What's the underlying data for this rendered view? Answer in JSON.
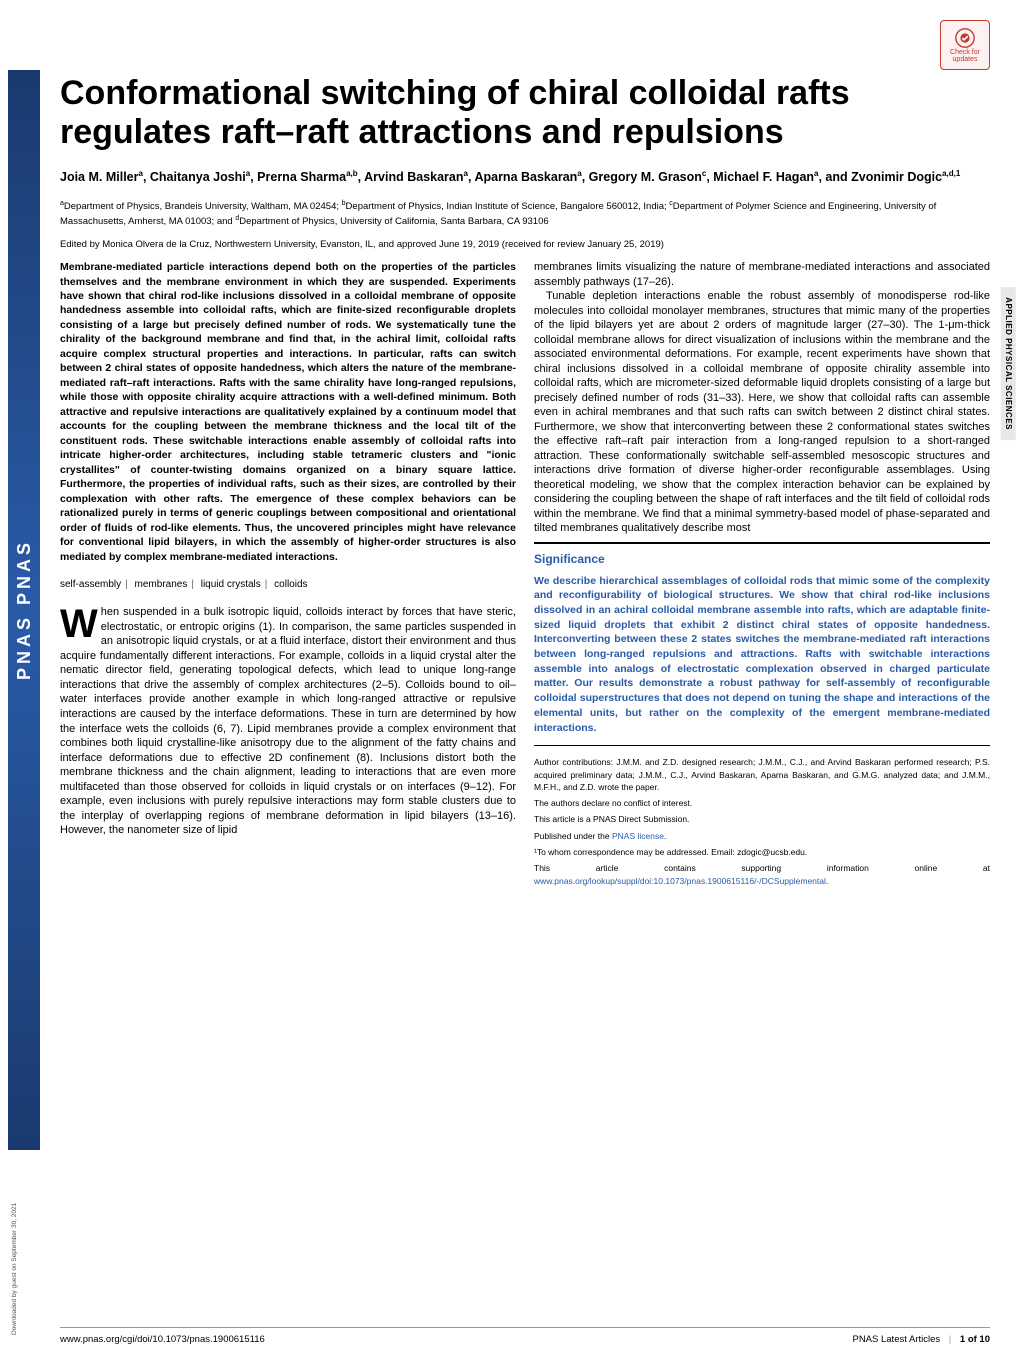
{
  "journal_ribbon": "PNAS PNAS",
  "download_note": "Downloaded by guest on September 30, 2021",
  "badge": {
    "line1": "Check for",
    "line2": "updates"
  },
  "side_label": "APPLIED PHYSICAL SCIENCES",
  "title": "Conformational switching of chiral colloidal rafts regulates raft–raft attractions and repulsions",
  "authors_html": "Joia M. Miller<sup>a</sup>, Chaitanya Joshi<sup>a</sup>, Prerna Sharma<sup>a,b</sup>, Arvind Baskaran<sup>a</sup>, Aparna Baskaran<sup>a</sup>, Gregory M. Grason<sup>c</sup>, Michael F. Hagan<sup>a</sup>, and Zvonimir Dogic<sup>a,d,1</sup>",
  "affiliations_html": "<sup>a</sup>Department of Physics, Brandeis University, Waltham, MA 02454; <sup>b</sup>Department of Physics, Indian Institute of Science, Bangalore 560012, India; <sup>c</sup>Department of Polymer Science and Engineering, University of Massachusetts, Amherst, MA 01003; and <sup>d</sup>Department of Physics, University of California, Santa Barbara, CA 93106",
  "edited": "Edited by Monica Olvera de la Cruz, Northwestern University, Evanston, IL, and approved June 19, 2019 (received for review January 25, 2019)",
  "abstract": "Membrane-mediated particle interactions depend both on the properties of the particles themselves and the membrane environment in which they are suspended. Experiments have shown that chiral rod-like inclusions dissolved in a colloidal membrane of opposite handedness assemble into colloidal rafts, which are finite-sized reconfigurable droplets consisting of a large but precisely defined number of rods. We systematically tune the chirality of the background membrane and find that, in the achiral limit, colloidal rafts acquire complex structural properties and interactions. In particular, rafts can switch between 2 chiral states of opposite handedness, which alters the nature of the membrane-mediated raft–raft interactions. Rafts with the same chirality have long-ranged repulsions, while those with opposite chirality acquire attractions with a well-defined minimum. Both attractive and repulsive interactions are qualitatively explained by a continuum model that accounts for the coupling between the membrane thickness and the local tilt of the constituent rods. These switchable interactions enable assembly of colloidal rafts into intricate higher-order architectures, including stable tetrameric clusters and \"ionic crystallites\" of counter-twisting domains organized on a binary square lattice. Furthermore, the properties of individual rafts, such as their sizes, are controlled by their complexation with other rafts. The emergence of these complex behaviors can be rationalized purely in terms of generic couplings between compositional and orientational order of fluids of rod-like elements. Thus, the uncovered principles might have relevance for conventional lipid bilayers, in which the assembly of higher-order structures is also mediated by complex membrane-mediated interactions.",
  "keywords": [
    "self-assembly",
    "membranes",
    "liquid crystals",
    "colloids"
  ],
  "body_col1": "hen suspended in a bulk isotropic liquid, colloids interact by forces that have steric, electrostatic, or entropic origins (1). In comparison, the same particles suspended in an anisotropic liquid crystals, or at a fluid interface, distort their environment and thus acquire fundamentally different interactions. For example, colloids in a liquid crystal alter the nematic director field, generating topological defects, which lead to unique long-range interactions that drive the assembly of complex architectures (2–5). Colloids bound to oil–water interfaces provide another example in which long-ranged attractive or repulsive interactions are caused by the interface deformations. These in turn are determined by how the interface wets the colloids (6, 7). Lipid membranes provide a complex environment that combines both liquid crystalline-like anisotropy due to the alignment of the fatty chains and interface deformations due to effective 2D confinement (8). Inclusions distort both the membrane thickness and the chain alignment, leading to interactions that are even more multifaceted than those observed for colloids in liquid crystals or on interfaces (9–12). For example, even inclusions with purely repulsive interactions may form stable clusters due to the interplay of overlapping regions of membrane deformation in lipid bilayers (13–16). However, the nanometer size of lipid",
  "body_col2_top": "membranes limits visualizing the nature of membrane-mediated interactions and associated assembly pathways (17–26).",
  "body_col2_p2": "Tunable depletion interactions enable the robust assembly of monodisperse rod-like molecules into colloidal monolayer membranes, structures that mimic many of the properties of the lipid bilayers yet are about 2 orders of magnitude larger (27–30). The 1-μm-thick colloidal membrane allows for direct visualization of inclusions within the membrane and the associated environmental deformations. For example, recent experiments have shown that chiral inclusions dissolved in a colloidal membrane of opposite chirality assemble into colloidal rafts, which are micrometer-sized deformable liquid droplets consisting of a large but precisely defined number of rods (31–33). Here, we show that colloidal rafts can assemble even in achiral membranes and that such rafts can switch between 2 distinct chiral states. Furthermore, we show that interconverting between these 2 conformational states switches the effective raft–raft pair interaction from a long-ranged repulsion to a short-ranged attraction. These conformationally switchable self-assembled mesoscopic structures and interactions drive formation of diverse higher-order reconfigurable assemblages. Using theoretical modeling, we show that the complex interaction behavior can be explained by considering the coupling between the shape of raft interfaces and the tilt field of colloidal rods within the membrane. We find that a minimal symmetry-based model of phase-separated and tilted membranes qualitatively describe most",
  "significance": {
    "heading": "Significance",
    "text": "We describe hierarchical assemblages of colloidal rods that mimic some of the complexity and reconfigurability of biological structures. We show that chiral rod-like inclusions dissolved in an achiral colloidal membrane assemble into rafts, which are adaptable finite-sized liquid droplets that exhibit 2 distinct chiral states of opposite handedness. Interconverting between these 2 states switches the membrane-mediated raft interactions between long-ranged repulsions and attractions. Rafts with switchable interactions assemble into analogs of electrostatic complexation observed in charged particulate matter. Our results demonstrate a robust pathway for self-assembly of reconfigurable colloidal superstructures that does not depend on tuning the shape and interactions of the elemental units, but rather on the complexity of the emergent membrane-mediated interactions."
  },
  "meta": {
    "contributions": "Author contributions: J.M.M. and Z.D. designed research; J.M.M., C.J., and Arvind Baskaran performed research; P.S. acquired preliminary data; J.M.M., C.J., Arvind Baskaran, Aparna Baskaran, and G.M.G. analyzed data; and J.M.M., M.F.H., and Z.D. wrote the paper.",
    "conflict": "The authors declare no conflict of interest.",
    "direct": "This article is a PNAS Direct Submission.",
    "license_pre": "Published under the ",
    "license_link": "PNAS license",
    "license_post": ".",
    "corresponding": "¹To whom correspondence may be addressed. Email: zdogic@ucsb.edu.",
    "supp_pre": "This article contains supporting information online at ",
    "supp_link": "www.pnas.org/lookup/suppl/doi:10.1073/pnas.1900615116/-/DCSupplemental",
    "supp_post": "."
  },
  "footer": {
    "doi": "www.pnas.org/cgi/doi/10.1073/pnas.1900615116",
    "right1": "PNAS Latest Articles",
    "right2": "1 of 10"
  },
  "colors": {
    "brand_blue": "#2a5ba8",
    "ribbon_dark": "#1a3a6e",
    "badge_red": "#c0392b",
    "side_bg": "#e8e8e8"
  }
}
